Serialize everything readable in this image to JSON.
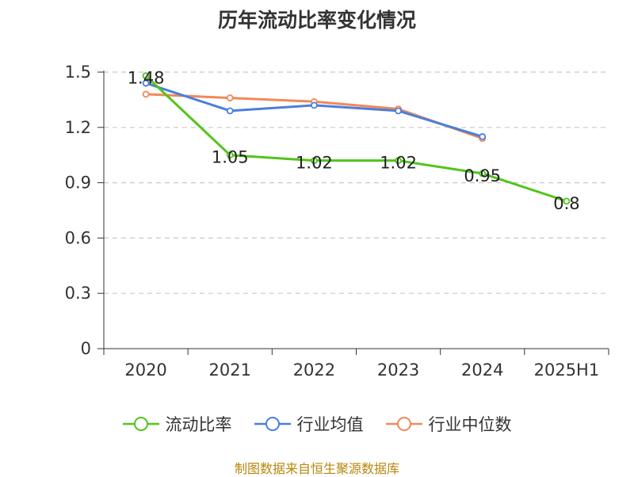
{
  "chart_data": {
    "type": "line",
    "title": "历年流动比率变化情况",
    "categories": [
      "2020",
      "2021",
      "2022",
      "2023",
      "2024",
      "2025H1"
    ],
    "ylim": [
      0,
      1.5
    ],
    "yticks": [
      "0",
      "0.3",
      "0.6",
      "0.9",
      "1.2",
      "1.5"
    ],
    "ytick_values": [
      0,
      0.3,
      0.6,
      0.9,
      1.2,
      1.5
    ],
    "grid": true,
    "legend_position": "bottom",
    "series": [
      {
        "name": "流动比率",
        "color": "#52c41a",
        "values": [
          1.48,
          1.05,
          1.02,
          1.02,
          0.95,
          0.8
        ],
        "labels": [
          "1.48",
          "1.05",
          "1.02",
          "1.02",
          "0.95",
          "0.8"
        ]
      },
      {
        "name": "行业均值",
        "color": "#4a7fdb",
        "values": [
          1.44,
          1.29,
          1.32,
          1.29,
          1.15,
          null
        ]
      },
      {
        "name": "行业中位数",
        "color": "#f0895a",
        "values": [
          1.38,
          1.36,
          1.34,
          1.3,
          1.14,
          null
        ]
      }
    ]
  },
  "source": "制图数据来自恒生聚源数据库"
}
